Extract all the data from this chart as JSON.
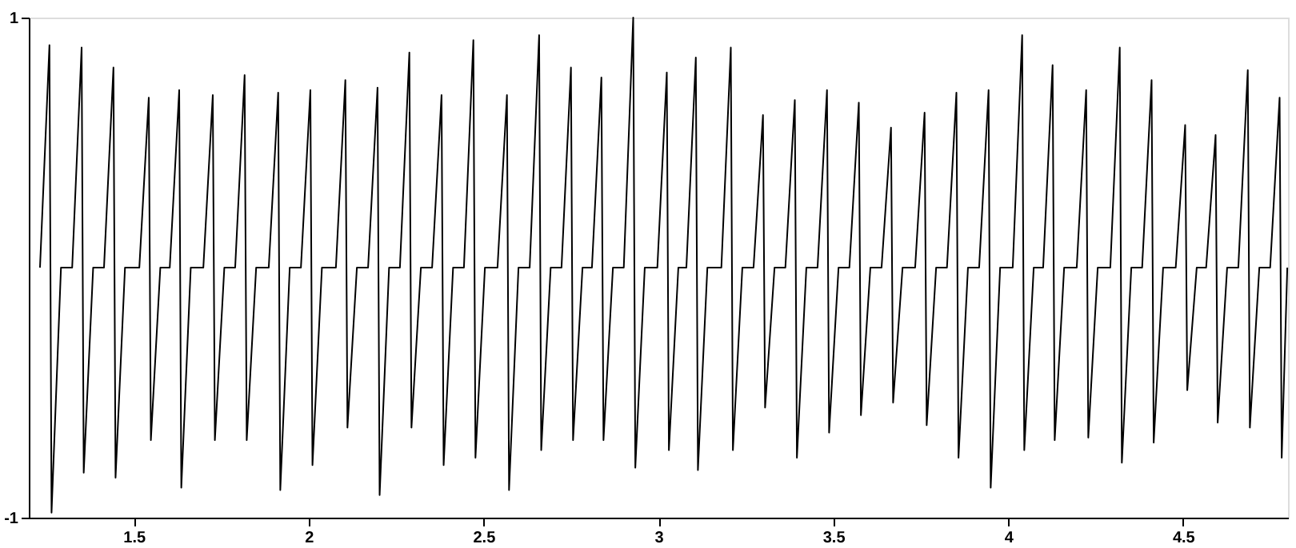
{
  "chart_data": {
    "type": "line",
    "grid": false,
    "xlim": [
      1.2,
      4.8
    ],
    "xticks": [
      1.5,
      2,
      2.5,
      3,
      3.5,
      4,
      4.5
    ],
    "ylim": [
      -1,
      1
    ],
    "yticks": [
      -1,
      1
    ],
    "series": [
      {
        "color": "#000000",
        "x": [
          1.232,
          1.259,
          1.265,
          1.292,
          1.324,
          1.351,
          1.357,
          1.384,
          1.415,
          1.442,
          1.448,
          1.475,
          1.516,
          1.543,
          1.549,
          1.576,
          1.603,
          1.63,
          1.636,
          1.663,
          1.699,
          1.726,
          1.732,
          1.759,
          1.79,
          1.817,
          1.823,
          1.85,
          1.886,
          1.913,
          1.919,
          1.946,
          1.978,
          2.005,
          2.011,
          2.038,
          2.078,
          2.105,
          2.111,
          2.138,
          2.17,
          2.197,
          2.203,
          2.23,
          2.261,
          2.288,
          2.294,
          2.321,
          2.353,
          2.38,
          2.386,
          2.413,
          2.444,
          2.471,
          2.477,
          2.504,
          2.54,
          2.567,
          2.573,
          2.6,
          2.632,
          2.659,
          2.665,
          2.692,
          2.723,
          2.75,
          2.756,
          2.783,
          2.81,
          2.837,
          2.843,
          2.87,
          2.901,
          2.928,
          2.934,
          2.961,
          2.997,
          3.024,
          3.03,
          3.057,
          3.08,
          3.107,
          3.113,
          3.14,
          3.18,
          3.207,
          3.213,
          3.24,
          3.272,
          3.299,
          3.305,
          3.332,
          3.363,
          3.39,
          3.396,
          3.423,
          3.455,
          3.482,
          3.488,
          3.515,
          3.546,
          3.573,
          3.579,
          3.606,
          3.638,
          3.665,
          3.671,
          3.698,
          3.734,
          3.761,
          3.767,
          3.794,
          3.825,
          3.852,
          3.858,
          3.885,
          3.917,
          3.944,
          3.95,
          3.977,
          4.013,
          4.04,
          4.046,
          4.073,
          4.1,
          4.127,
          4.133,
          4.16,
          4.196,
          4.223,
          4.229,
          4.256,
          4.292,
          4.319,
          4.325,
          4.352,
          4.383,
          4.41,
          4.416,
          4.443,
          4.479,
          4.506,
          4.512,
          4.539,
          4.566,
          4.593,
          4.599,
          4.626,
          4.658,
          4.685,
          4.691,
          4.718,
          4.749,
          4.776,
          4.782,
          4.798
        ],
        "values": [
          0,
          0.89,
          -0.98,
          0,
          0,
          0.88,
          -0.82,
          0,
          0,
          0.8,
          -0.84,
          0,
          0,
          0.68,
          -0.69,
          0,
          0,
          0.71,
          -0.88,
          0,
          0,
          0.69,
          -0.69,
          0,
          0,
          0.77,
          -0.69,
          0,
          0,
          0.7,
          -0.89,
          0,
          0,
          0.71,
          -0.79,
          0,
          0,
          0.75,
          -0.64,
          0,
          0,
          0.72,
          -0.91,
          0,
          0,
          0.86,
          -0.64,
          0,
          0,
          0.69,
          -0.79,
          0,
          0,
          0.91,
          -0.76,
          0,
          0,
          0.69,
          -0.89,
          0,
          0,
          0.93,
          -0.73,
          0,
          0,
          0.8,
          -0.69,
          0,
          0,
          0.76,
          -0.69,
          0,
          0,
          1.0,
          -0.8,
          0,
          0,
          0.78,
          -0.73,
          0,
          0,
          0.84,
          -0.81,
          0,
          0,
          0.88,
          -0.73,
          0,
          0,
          0.61,
          -0.56,
          0,
          0,
          0.67,
          -0.76,
          0,
          0,
          0.71,
          -0.66,
          0,
          0,
          0.66,
          -0.59,
          0,
          0,
          0.56,
          -0.54,
          0,
          0,
          0.62,
          -0.63,
          0,
          0,
          0.7,
          -0.76,
          0,
          0,
          0.71,
          -0.88,
          0,
          0,
          0.93,
          -0.73,
          0,
          0,
          0.81,
          -0.69,
          0,
          0,
          0.71,
          -0.68,
          0,
          0,
          0.88,
          -0.78,
          0,
          0,
          0.75,
          -0.7,
          0,
          0,
          0.57,
          -0.49,
          0,
          0,
          0.53,
          -0.62,
          0,
          0,
          0.79,
          -0.64,
          0,
          0,
          0.68,
          -0.76,
          0
        ]
      }
    ]
  }
}
